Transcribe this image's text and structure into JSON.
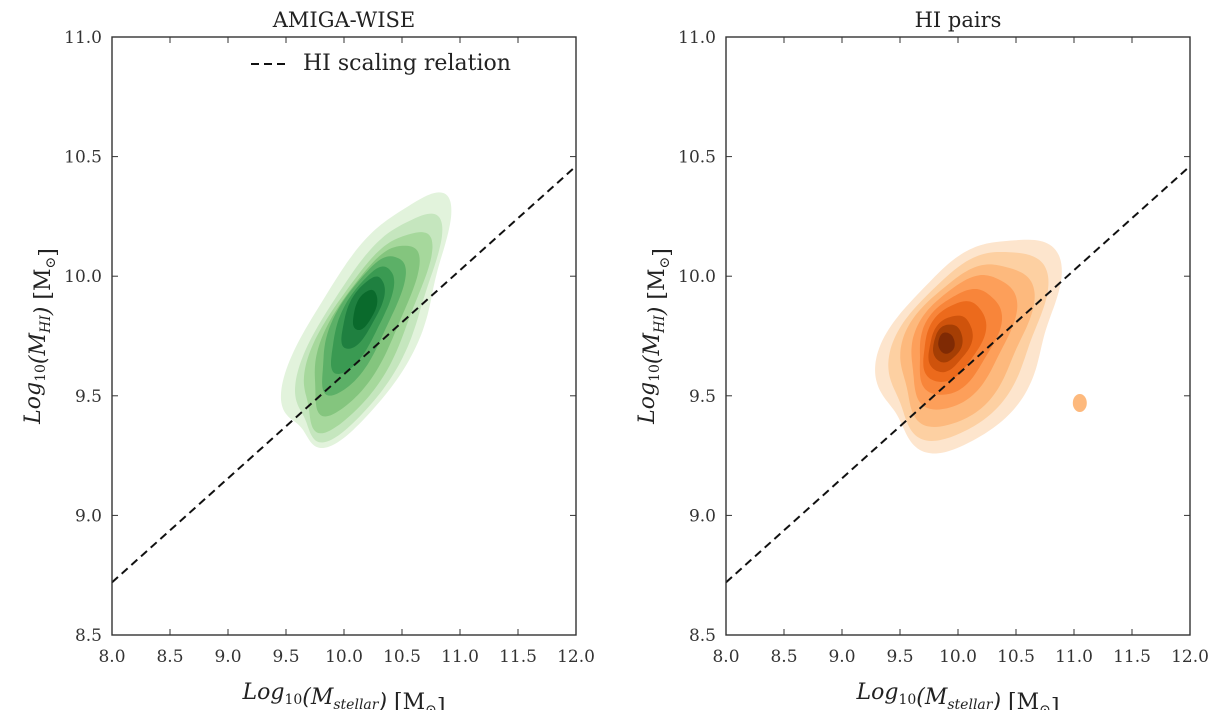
{
  "chart_data": [
    {
      "type": "contour",
      "title": "AMIGA-WISE",
      "xlabel": {
        "base": "Log",
        "base_sub": "10",
        "var": "(M",
        "var_sub": "stellar",
        "close": ")",
        "unit": "[M",
        "unit_sub": "⊙",
        "unit_close": "]"
      },
      "ylabel": {
        "base": "Log",
        "base_sub": "10",
        "var": "(M",
        "var_sub": "HI",
        "close": ")",
        "unit": "[M",
        "unit_sub": "⊙",
        "unit_close": "]"
      },
      "xlim": [
        8.0,
        12.0
      ],
      "ylim": [
        8.5,
        11.0
      ],
      "xticks": [
        "8.0",
        "8.5",
        "9.0",
        "9.5",
        "10.0",
        "10.5",
        "11.0",
        "11.5",
        "12.0"
      ],
      "yticks": [
        "8.5",
        "9.0",
        "9.5",
        "10.0",
        "10.5",
        "11.0"
      ],
      "colormap": "Greens",
      "level_colors": [
        "#e2f3dc",
        "#c5e6be",
        "#a6d89c",
        "#84c57e",
        "#5cb067",
        "#3a9a52",
        "#1f8040",
        "#0a6a2c"
      ],
      "density_peak": [
        10.15,
        9.83
      ],
      "scaling_relation": {
        "name": "HI scaling relation",
        "x": [
          8.0,
          12.0
        ],
        "y": [
          8.72,
          10.46
        ],
        "style": "dashed"
      },
      "legend": {
        "entries": [
          "HI scaling relation"
        ],
        "location": "top-right"
      }
    },
    {
      "type": "contour",
      "title": "HI pairs",
      "xlabel": {
        "base": "Log",
        "base_sub": "10",
        "var": "(M",
        "var_sub": "stellar",
        "close": ")",
        "unit": "[M",
        "unit_sub": "⊙",
        "unit_close": "]"
      },
      "ylabel": {
        "base": "Log",
        "base_sub": "10",
        "var": "(M",
        "var_sub": "HI",
        "close": ")",
        "unit": "[M",
        "unit_sub": "⊙",
        "unit_close": "]"
      },
      "xlim": [
        8.0,
        12.0
      ],
      "ylim": [
        8.5,
        11.0
      ],
      "xticks": [
        "8.0",
        "8.5",
        "9.0",
        "9.5",
        "10.0",
        "10.5",
        "11.0",
        "11.5",
        "12.0"
      ],
      "yticks": [
        "8.5",
        "9.0",
        "9.5",
        "10.0",
        "10.5",
        "11.0"
      ],
      "colormap": "Oranges",
      "level_colors": [
        "#fde5cd",
        "#fdd0a2",
        "#fdb97d",
        "#fd9f5a",
        "#f8853a",
        "#ec6a1c",
        "#cf530c",
        "#a53e04",
        "#7f2a04"
      ],
      "density_peak": [
        9.9,
        9.72
      ],
      "scaling_relation": {
        "name": "HI scaling relation",
        "x": [
          8.0,
          12.0
        ],
        "y": [
          8.72,
          10.46
        ],
        "style": "dashed"
      },
      "legend": null
    }
  ]
}
